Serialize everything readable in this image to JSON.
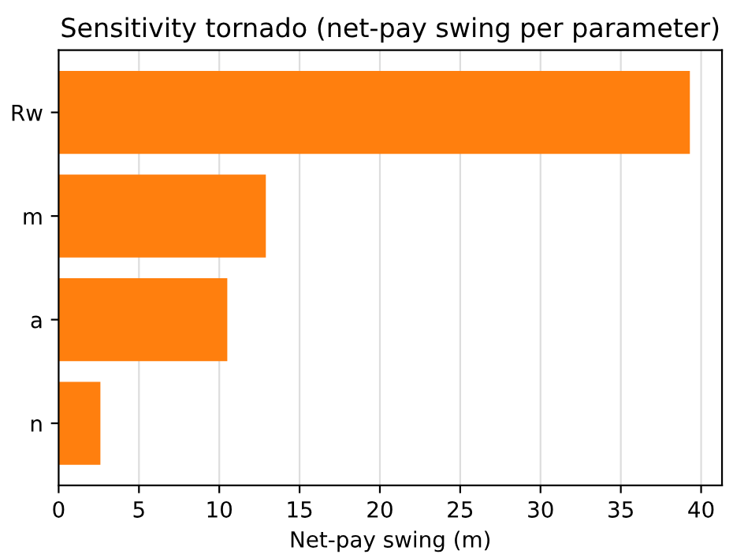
{
  "chart_data": {
    "type": "bar",
    "orientation": "horizontal",
    "title": "Sensitivity tornado (net-pay swing per parameter)",
    "xlabel": "Net-pay swing (m)",
    "categories": [
      "Rw",
      "m",
      "a",
      "n"
    ],
    "values": [
      39.3,
      12.9,
      10.5,
      2.6
    ],
    "color": "#ff7f0e",
    "xlim": [
      0,
      41.3
    ],
    "xticks": [
      0,
      5,
      10,
      15,
      20,
      25,
      30,
      35,
      40
    ],
    "grid": "x"
  }
}
